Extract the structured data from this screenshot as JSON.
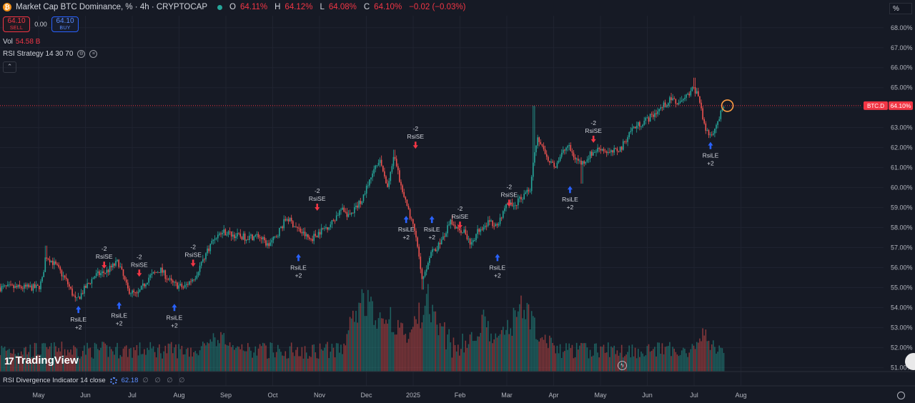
{
  "header": {
    "symbol_icon": "bitcoin-icon",
    "title": "Market Cap BTC Dominance, % · 4h · CRYPTOCAP",
    "ohlc": [
      {
        "label": "O",
        "value": "64.11%"
      },
      {
        "label": "H",
        "value": "64.12%"
      },
      {
        "label": "L",
        "value": "64.08%"
      },
      {
        "label": "C",
        "value": "64.10%"
      }
    ],
    "change": "−0.02 (−0.03%)"
  },
  "trade": {
    "sell_price": "64.10",
    "sell_label": "SELL",
    "spread": "0.00",
    "buy_price": "64.10",
    "buy_label": "BUY"
  },
  "volume": {
    "label": "Vol",
    "value": "54.58 B"
  },
  "strategy": {
    "label": "RSI Strategy 14 30 70"
  },
  "collapse_icon": "chevron-up-icon",
  "scale_button": "%",
  "logo": {
    "mark": "17",
    "text": "TradingView"
  },
  "rsi_indicator": {
    "label": "RSI Divergence Indicator 14 close",
    "value": "62.18",
    "empty": "∅ ∅ ∅ ∅"
  },
  "colors": {
    "background": "#161a25",
    "up": "#26a69a",
    "down": "#ef5350",
    "buy_signal": "#2962ff",
    "sell_signal": "#f23645",
    "price_line": "#f23645"
  },
  "chart_data": {
    "type": "candlestick",
    "price_axis": {
      "range": [
        50.8,
        68.6
      ],
      "ticks": [
        "51.00%",
        "52.00%",
        "53.00%",
        "54.00%",
        "55.00%",
        "56.00%",
        "57.00%",
        "58.00%",
        "59.00%",
        "60.00%",
        "61.00%",
        "62.00%",
        "63.00%",
        "64.00%",
        "65.00%",
        "66.00%",
        "67.00%",
        "68.00%"
      ]
    },
    "time_axis": [
      "May",
      "Jun",
      "Jul",
      "Aug",
      "Sep",
      "Oct",
      "Nov",
      "Dec",
      "2025",
      "Feb",
      "Mar",
      "Apr",
      "May",
      "Jun",
      "Jul",
      "Aug"
    ],
    "current_price": {
      "label": "BTC.D",
      "value": "64.10%",
      "price": 64.1
    },
    "close_path": [
      {
        "t": 0,
        "v": 55.0
      },
      {
        "t": 0.08,
        "v": 55.4
      },
      {
        "t": 0.15,
        "v": 56.6
      },
      {
        "t": 0.25,
        "v": 56.4
      },
      {
        "t": 0.4,
        "v": 56.0
      },
      {
        "t": 0.6,
        "v": 55.3
      },
      {
        "t": 0.8,
        "v": 54.3
      },
      {
        "t": 1.0,
        "v": 55.0
      },
      {
        "t": 1.2,
        "v": 55.6
      },
      {
        "t": 1.45,
        "v": 55.8
      },
      {
        "t": 1.7,
        "v": 56.3
      },
      {
        "t": 1.9,
        "v": 54.9
      },
      {
        "t": 2.1,
        "v": 54.6
      },
      {
        "t": 2.35,
        "v": 55.5
      },
      {
        "t": 2.6,
        "v": 55.9
      },
      {
        "t": 2.85,
        "v": 55.2
      },
      {
        "t": 3.1,
        "v": 55.0
      },
      {
        "t": 3.35,
        "v": 55.6
      },
      {
        "t": 3.55,
        "v": 56.6
      },
      {
        "t": 3.75,
        "v": 57.5
      },
      {
        "t": 3.95,
        "v": 57.8
      },
      {
        "t": 4.2,
        "v": 57.6
      },
      {
        "t": 4.45,
        "v": 57.5
      },
      {
        "t": 4.7,
        "v": 57.6
      },
      {
        "t": 4.9,
        "v": 57.1
      },
      {
        "t": 5.05,
        "v": 57.5
      },
      {
        "t": 5.3,
        "v": 58.5
      },
      {
        "t": 5.55,
        "v": 57.9
      },
      {
        "t": 5.8,
        "v": 57.4
      },
      {
        "t": 6.0,
        "v": 57.8
      },
      {
        "t": 6.25,
        "v": 58.2
      },
      {
        "t": 6.45,
        "v": 58.9
      },
      {
        "t": 6.65,
        "v": 58.6
      },
      {
        "t": 6.9,
        "v": 59.4
      },
      {
        "t": 7.15,
        "v": 60.8
      },
      {
        "t": 7.3,
        "v": 61.3
      },
      {
        "t": 7.45,
        "v": 60.0
      },
      {
        "t": 7.6,
        "v": 61.6
      },
      {
        "t": 7.75,
        "v": 59.9
      },
      {
        "t": 7.9,
        "v": 58.8
      },
      {
        "t": 8.05,
        "v": 57.6
      },
      {
        "t": 8.2,
        "v": 55.4
      },
      {
        "t": 8.35,
        "v": 56.6
      },
      {
        "t": 8.5,
        "v": 57.0
      },
      {
        "t": 8.65,
        "v": 57.5
      },
      {
        "t": 8.8,
        "v": 58.3
      },
      {
        "t": 8.95,
        "v": 58.0
      },
      {
        "t": 9.1,
        "v": 57.8
      },
      {
        "t": 9.25,
        "v": 57.1
      },
      {
        "t": 9.4,
        "v": 57.9
      },
      {
        "t": 9.6,
        "v": 58.3
      },
      {
        "t": 9.8,
        "v": 58.0
      },
      {
        "t": 10.0,
        "v": 59.2
      },
      {
        "t": 10.15,
        "v": 59.1
      },
      {
        "t": 10.35,
        "v": 59.6
      },
      {
        "t": 10.5,
        "v": 60.0
      },
      {
        "t": 10.58,
        "v": 61.8
      },
      {
        "t": 10.65,
        "v": 62.5
      },
      {
        "t": 10.8,
        "v": 61.8
      },
      {
        "t": 11.0,
        "v": 61.0
      },
      {
        "t": 11.15,
        "v": 61.6
      },
      {
        "t": 11.3,
        "v": 62.1
      },
      {
        "t": 11.45,
        "v": 61.5
      },
      {
        "t": 11.6,
        "v": 61.2
      },
      {
        "t": 11.8,
        "v": 61.7
      },
      {
        "t": 12.0,
        "v": 62.0
      },
      {
        "t": 12.2,
        "v": 61.7
      },
      {
        "t": 12.45,
        "v": 62.0
      },
      {
        "t": 12.65,
        "v": 62.9
      },
      {
        "t": 12.85,
        "v": 63.2
      },
      {
        "t": 13.05,
        "v": 63.5
      },
      {
        "t": 13.3,
        "v": 64.0
      },
      {
        "t": 13.5,
        "v": 64.4
      },
      {
        "t": 13.7,
        "v": 64.2
      },
      {
        "t": 13.9,
        "v": 64.7
      },
      {
        "t": 14.0,
        "v": 65.0
      },
      {
        "t": 14.12,
        "v": 64.4
      },
      {
        "t": 14.22,
        "v": 63.0
      },
      {
        "t": 14.35,
        "v": 62.6
      },
      {
        "t": 14.5,
        "v": 63.3
      },
      {
        "t": 14.65,
        "v": 64.1
      }
    ],
    "spikes": [
      {
        "t": 0.15,
        "high": 57.1
      },
      {
        "t": 10.58,
        "high": 64.1
      },
      {
        "t": 14.02,
        "high": 65.5
      },
      {
        "t": 7.6,
        "high": 61.9
      },
      {
        "t": 8.2,
        "low": 54.9
      },
      {
        "t": 11.6,
        "low": 60.2
      }
    ],
    "signals": [
      {
        "type": "buy",
        "t": 0.85,
        "price": 54.3,
        "text": "RsiLE",
        "qty": "+2"
      },
      {
        "type": "sell",
        "t": 1.4,
        "price": 55.8,
        "text": "RsiSE",
        "qty": "-2"
      },
      {
        "type": "buy",
        "t": 1.72,
        "price": 54.5,
        "text": "RsiLE",
        "qty": "+2"
      },
      {
        "type": "sell",
        "t": 2.15,
        "price": 55.4,
        "text": "RsiSE",
        "qty": "-2"
      },
      {
        "type": "buy",
        "t": 2.9,
        "price": 54.4,
        "text": "RsiLE",
        "qty": "+2"
      },
      {
        "type": "sell",
        "t": 3.3,
        "price": 55.9,
        "text": "RsiSE",
        "qty": "-2"
      },
      {
        "type": "buy",
        "t": 5.55,
        "price": 56.9,
        "text": "RsiLE",
        "qty": "+2"
      },
      {
        "type": "sell",
        "t": 5.95,
        "price": 58.7,
        "text": "RsiSE",
        "qty": "-2"
      },
      {
        "type": "buy",
        "t": 7.85,
        "price": 58.8,
        "text": "RsiLE",
        "qty": "+2"
      },
      {
        "type": "sell",
        "t": 8.05,
        "price": 61.8,
        "text": "RsiSE",
        "qty": "-2"
      },
      {
        "type": "buy",
        "t": 8.4,
        "price": 58.8,
        "text": "RsiLE",
        "qty": "+2"
      },
      {
        "type": "sell",
        "t": 9.0,
        "price": 57.8,
        "text": "RsiSE",
        "qty": "-2"
      },
      {
        "type": "buy",
        "t": 9.8,
        "price": 56.9,
        "text": "RsiLE",
        "qty": "+2"
      },
      {
        "type": "sell",
        "t": 10.05,
        "price": 58.9,
        "text": "RsiSE",
        "qty": "-2"
      },
      {
        "type": "buy",
        "t": 11.35,
        "price": 60.3,
        "text": "RsiLE",
        "qty": "+2"
      },
      {
        "type": "sell",
        "t": 11.85,
        "price": 62.1,
        "text": "RsiSE",
        "qty": "-2"
      },
      {
        "type": "buy",
        "t": 14.35,
        "price": 62.5,
        "text": "RsiLE",
        "qty": "+2"
      }
    ],
    "volume_hint": "bars",
    "volume_spikes": [
      {
        "t": 7.0,
        "level": 0.95
      },
      {
        "t": 7.5,
        "level": 0.7
      },
      {
        "t": 8.3,
        "level": 0.85
      },
      {
        "t": 10.3,
        "level": 0.8
      },
      {
        "t": 9.5,
        "level": 0.6
      },
      {
        "t": 3.9,
        "level": 0.55
      },
      {
        "t": 14.2,
        "level": 0.5
      }
    ]
  }
}
